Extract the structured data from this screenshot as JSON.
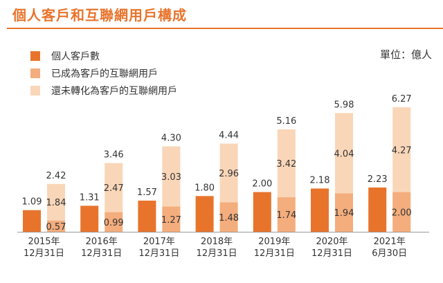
{
  "title": "個人客戶和互聯網用戶構成",
  "unit_label": "單位：億人",
  "colors": {
    "title": "#e8742c",
    "series_dark": "#e8742c",
    "series_mid": "#f4ad7c",
    "series_light": "#f9d6b8"
  },
  "legend": [
    {
      "label": "個人客戶數",
      "color": "#e8742c"
    },
    {
      "label": "已成為客戶的互聯網用戶",
      "color": "#f4ad7c"
    },
    {
      "label": "還未轉化為客戶的互聯網用戶",
      "color": "#f9d6b8"
    }
  ],
  "chart_data": {
    "type": "bar",
    "categories": [
      {
        "line1": "2015年",
        "line2": "12月31日"
      },
      {
        "line1": "2016年",
        "line2": "12月31日"
      },
      {
        "line1": "2017年",
        "line2": "12月31日"
      },
      {
        "line1": "2018年",
        "line2": "12月31日"
      },
      {
        "line1": "2019年",
        "line2": "12月31日"
      },
      {
        "line1": "2020年",
        "line2": "12月31日"
      },
      {
        "line1": "2021年",
        "line2": "6月30日"
      }
    ],
    "series": [
      {
        "name": "個人客戶數",
        "values": [
          1.09,
          1.31,
          1.57,
          1.8,
          2.0,
          2.18,
          2.23
        ]
      },
      {
        "name": "已成為客戶的互聯網用戶",
        "values": [
          0.57,
          0.99,
          1.27,
          1.48,
          1.74,
          1.94,
          2.0
        ]
      },
      {
        "name": "還未轉化為客戶的互聯網用戶",
        "values": [
          1.84,
          2.47,
          3.03,
          2.96,
          3.42,
          4.04,
          4.27
        ]
      }
    ],
    "internet_user_totals": [
      2.42,
      3.46,
      4.3,
      4.44,
      5.16,
      5.98,
      6.27
    ],
    "ylim": [
      0,
      6.27
    ],
    "grid": false
  }
}
